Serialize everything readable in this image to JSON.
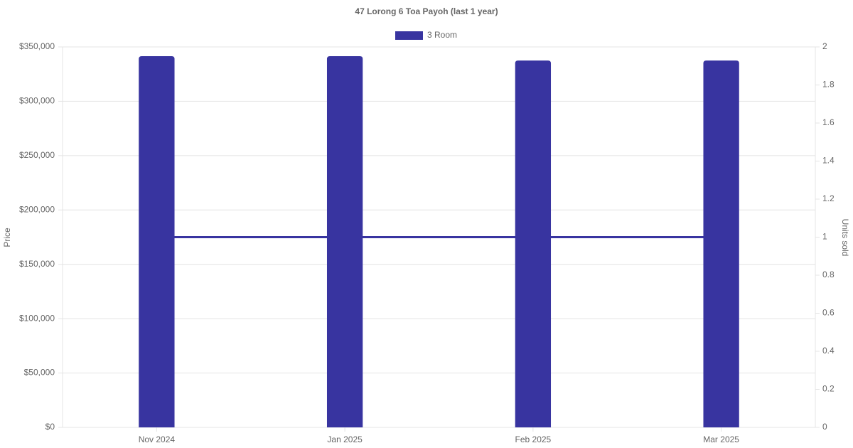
{
  "chart_data": {
    "type": "bar",
    "title": "47 Lorong 6 Toa Payoh (last 1 year)",
    "y_label": "Price",
    "y2_label": "Units sold",
    "categories": [
      "Nov 2024",
      "Jan 2025",
      "Feb 2025",
      "Mar 2025"
    ],
    "series": [
      {
        "name": "3 Room",
        "type": "bar",
        "color": "#3834a0",
        "values": [
          341500,
          341500,
          337500,
          337500
        ]
      },
      {
        "type": "line",
        "axis": "y2",
        "color": "#3834a0",
        "values": [
          1,
          1,
          1,
          1
        ]
      }
    ],
    "ylim": [
      0,
      350000
    ],
    "yticks": [
      {
        "value": 0,
        "label": "$0"
      },
      {
        "value": 50000,
        "label": "$50,000"
      },
      {
        "value": 100000,
        "label": "$100,000"
      },
      {
        "value": 150000,
        "label": "$150,000"
      },
      {
        "value": 200000,
        "label": "$200,000"
      },
      {
        "value": 250000,
        "label": "$250,000"
      },
      {
        "value": 300000,
        "label": "$300,000"
      },
      {
        "value": 350000,
        "label": "$350,000"
      }
    ],
    "y2lim": [
      0,
      2
    ],
    "y2ticks": [
      0,
      0.2,
      0.4,
      0.6,
      0.8,
      1,
      1.2,
      1.4,
      1.6,
      1.8,
      2
    ],
    "grid": true,
    "legend": "top"
  }
}
